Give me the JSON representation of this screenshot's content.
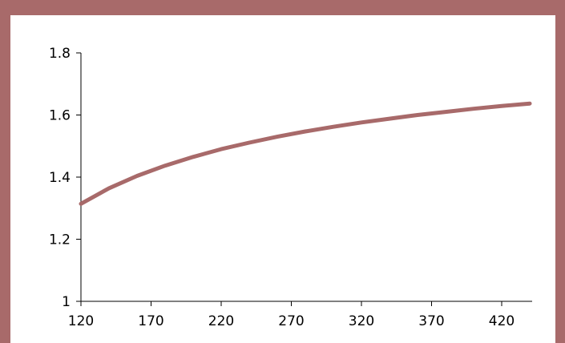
{
  "chart_data": {
    "type": "line",
    "title": "",
    "xlabel": "",
    "ylabel": "",
    "x_ticks": [
      "120",
      "170",
      "220",
      "270",
      "320",
      "370",
      "420"
    ],
    "y_ticks": [
      "1",
      "1.2",
      "1.4",
      "1.6",
      "1.8"
    ],
    "xlim": [
      120,
      442
    ],
    "ylim": [
      1,
      1.8
    ],
    "grid": false,
    "legend": "none",
    "series": [
      {
        "color": "#a86a6a",
        "x": [
          120,
          140,
          160,
          180,
          200,
          220,
          240,
          260,
          280,
          300,
          320,
          340,
          360,
          380,
          400,
          420,
          440
        ],
        "y": [
          1.314,
          1.364,
          1.404,
          1.437,
          1.465,
          1.49,
          1.511,
          1.53,
          1.547,
          1.562,
          1.576,
          1.588,
          1.6,
          1.61,
          1.62,
          1.629,
          1.637
        ]
      }
    ]
  }
}
